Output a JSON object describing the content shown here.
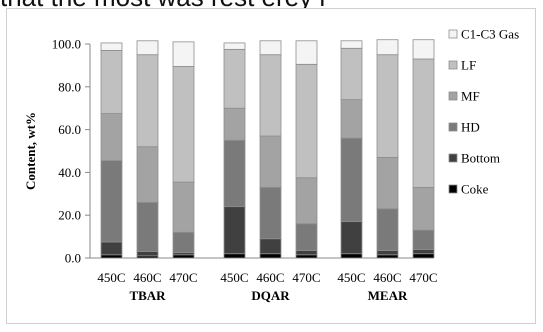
{
  "page": {
    "top_text": "that the most was rest erey r"
  },
  "chart_data": {
    "type": "bar",
    "stacked": true,
    "title": "",
    "xlabel": "",
    "ylabel": "Content, wt%",
    "ylim": [
      0,
      100
    ],
    "y_ticks": [
      "0.0",
      "20.0",
      "40.0",
      "60.0",
      "80.0",
      "100.0"
    ],
    "grid": false,
    "legend_position": "right",
    "groups": [
      {
        "name": "TBAR",
        "categories": [
          "450C",
          "460C",
          "470C"
        ]
      },
      {
        "name": "DQAR",
        "categories": [
          "450C",
          "460C",
          "470C"
        ]
      },
      {
        "name": "MEAR",
        "categories": [
          "450C",
          "460C",
          "470C"
        ]
      }
    ],
    "series": [
      {
        "name": "Coke",
        "color": "#000000",
        "values": [
          1.5,
          1.0,
          1.5,
          2.0,
          2.0,
          1.5,
          2.0,
          1.5,
          2.0
        ]
      },
      {
        "name": "Bottom",
        "color": "#404040",
        "values": [
          6.0,
          2.0,
          1.0,
          22.0,
          7.0,
          2.0,
          15.0,
          2.0,
          2.0
        ]
      },
      {
        "name": "HD",
        "color": "#7a7a7a",
        "values": [
          38.0,
          23.0,
          9.5,
          31.0,
          24.0,
          12.5,
          39.0,
          19.5,
          9.0
        ]
      },
      {
        "name": "MF",
        "color": "#a3a3a3",
        "values": [
          22.0,
          26.0,
          23.5,
          15.0,
          24.0,
          21.5,
          18.0,
          24.0,
          20.0
        ]
      },
      {
        "name": "LF",
        "color": "#c0c0c0",
        "values": [
          29.5,
          43.0,
          54.0,
          27.5,
          38.0,
          53.0,
          24.0,
          48.0,
          60.0
        ]
      },
      {
        "name": "C1-C3 Gas",
        "color": "#f4f4f4",
        "values": [
          3.5,
          6.5,
          11.5,
          3.0,
          6.5,
          11.0,
          3.5,
          7.0,
          9.0
        ]
      }
    ]
  }
}
